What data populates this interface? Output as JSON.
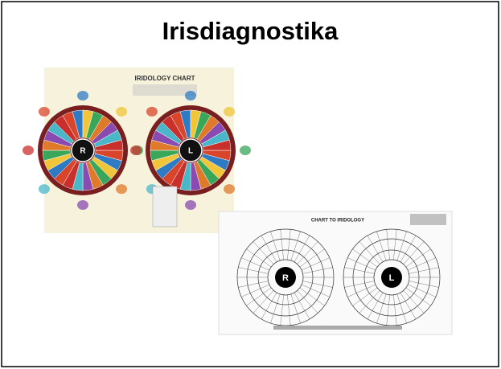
{
  "header": {
    "title": "Irisdiagnostika"
  },
  "images": [
    {
      "title": "IRIDOLOGY CHART",
      "left_label": "R",
      "right_label": "L"
    },
    {
      "title": "CHART TO IRIDOLOGY",
      "left_label": "R",
      "right_label": "L"
    }
  ]
}
